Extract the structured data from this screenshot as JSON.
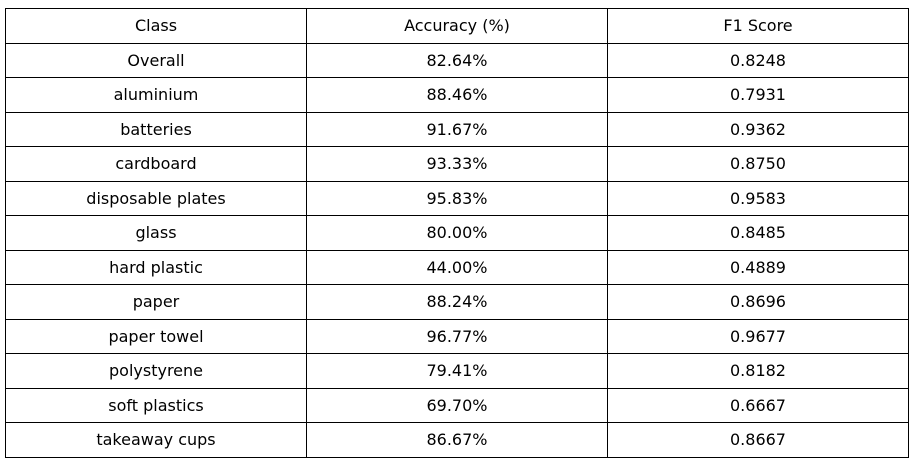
{
  "chart_data": {
    "type": "table",
    "columns": [
      "Class",
      "Accuracy (%)",
      "F1 Score"
    ],
    "rows": [
      [
        "Overall",
        "82.64%",
        "0.8248"
      ],
      [
        "aluminium",
        "88.46%",
        "0.7931"
      ],
      [
        "batteries",
        "91.67%",
        "0.9362"
      ],
      [
        "cardboard",
        "93.33%",
        "0.8750"
      ],
      [
        "disposable plates",
        "95.83%",
        "0.9583"
      ],
      [
        "glass",
        "80.00%",
        "0.8485"
      ],
      [
        "hard plastic",
        "44.00%",
        "0.4889"
      ],
      [
        "paper",
        "88.24%",
        "0.8696"
      ],
      [
        "paper towel",
        "96.77%",
        "0.9677"
      ],
      [
        "polystyrene",
        "79.41%",
        "0.8182"
      ],
      [
        "soft plastics",
        "69.70%",
        "0.6667"
      ],
      [
        "takeaway cups",
        "86.67%",
        "0.8667"
      ]
    ]
  }
}
